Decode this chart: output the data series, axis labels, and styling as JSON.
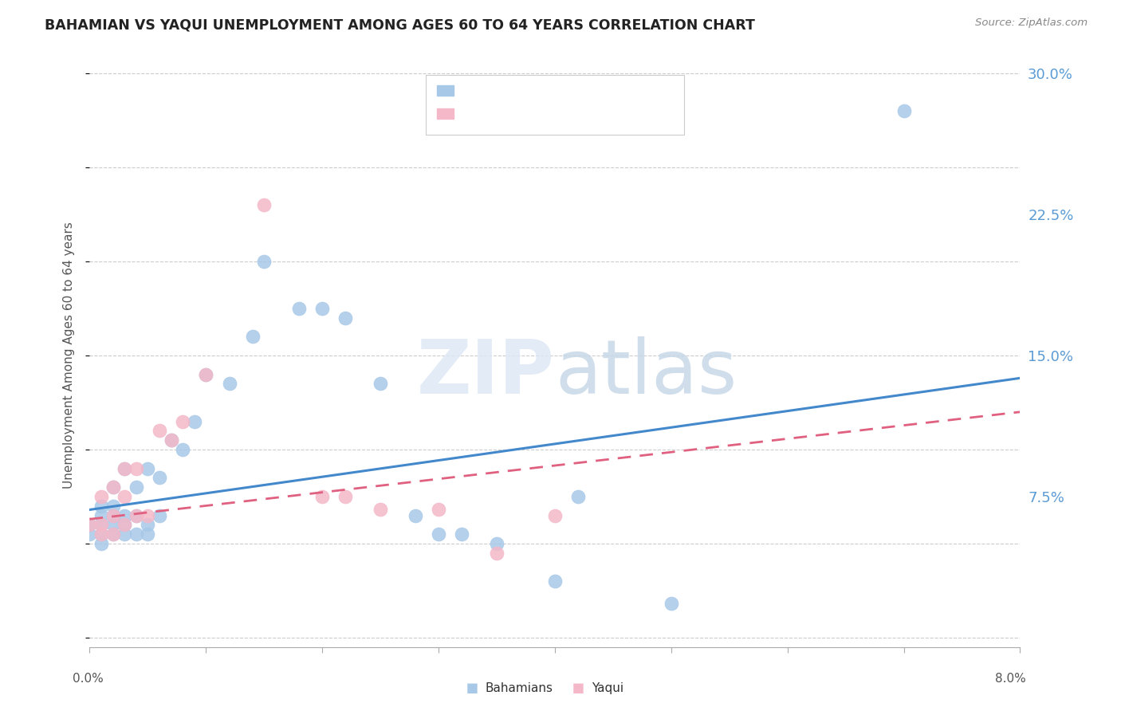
{
  "title": "BAHAMIAN VS YAQUI UNEMPLOYMENT AMONG AGES 60 TO 64 YEARS CORRELATION CHART",
  "source": "Source: ZipAtlas.com",
  "ylabel": "Unemployment Among Ages 60 to 64 years",
  "xmin": 0.0,
  "xmax": 0.08,
  "ymin": -0.005,
  "ymax": 0.305,
  "blue_color": "#a8c8e8",
  "pink_color": "#f4b8c8",
  "trend_blue": "#4488cc",
  "trend_pink": "#e06080",
  "legend_label1": "Bahamians",
  "legend_label2": "Yaqui",
  "watermark": "ZIPatlas",
  "blue_x": [
    0.0,
    0.0,
    0.001,
    0.001,
    0.001,
    0.001,
    0.001,
    0.002,
    0.002,
    0.002,
    0.002,
    0.002,
    0.003,
    0.003,
    0.003,
    0.003,
    0.004,
    0.004,
    0.004,
    0.005,
    0.005,
    0.005,
    0.006,
    0.006,
    0.007,
    0.008,
    0.009,
    0.01,
    0.012,
    0.014,
    0.015,
    0.018,
    0.02,
    0.022,
    0.025,
    0.028,
    0.03,
    0.032,
    0.035,
    0.04,
    0.042,
    0.05,
    0.07
  ],
  "blue_y": [
    0.055,
    0.06,
    0.05,
    0.055,
    0.06,
    0.065,
    0.07,
    0.055,
    0.06,
    0.065,
    0.07,
    0.08,
    0.055,
    0.06,
    0.065,
    0.09,
    0.055,
    0.065,
    0.08,
    0.055,
    0.06,
    0.09,
    0.065,
    0.085,
    0.105,
    0.1,
    0.115,
    0.14,
    0.135,
    0.16,
    0.2,
    0.175,
    0.175,
    0.17,
    0.135,
    0.065,
    0.055,
    0.055,
    0.05,
    0.03,
    0.075,
    0.018,
    0.28
  ],
  "pink_x": [
    0.0,
    0.001,
    0.001,
    0.001,
    0.002,
    0.002,
    0.002,
    0.003,
    0.003,
    0.003,
    0.004,
    0.004,
    0.005,
    0.006,
    0.007,
    0.008,
    0.01,
    0.015,
    0.02,
    0.022,
    0.025,
    0.03,
    0.035,
    0.04
  ],
  "pink_y": [
    0.06,
    0.055,
    0.06,
    0.075,
    0.055,
    0.065,
    0.08,
    0.06,
    0.075,
    0.09,
    0.065,
    0.09,
    0.065,
    0.11,
    0.105,
    0.115,
    0.14,
    0.23,
    0.075,
    0.075,
    0.068,
    0.068,
    0.045,
    0.065
  ],
  "trend_blue_x0": 0.0,
  "trend_blue_y0": 0.068,
  "trend_blue_x1": 0.08,
  "trend_blue_y1": 0.138,
  "trend_pink_x0": 0.0,
  "trend_pink_y0": 0.063,
  "trend_pink_x1": 0.08,
  "trend_pink_y1": 0.12
}
